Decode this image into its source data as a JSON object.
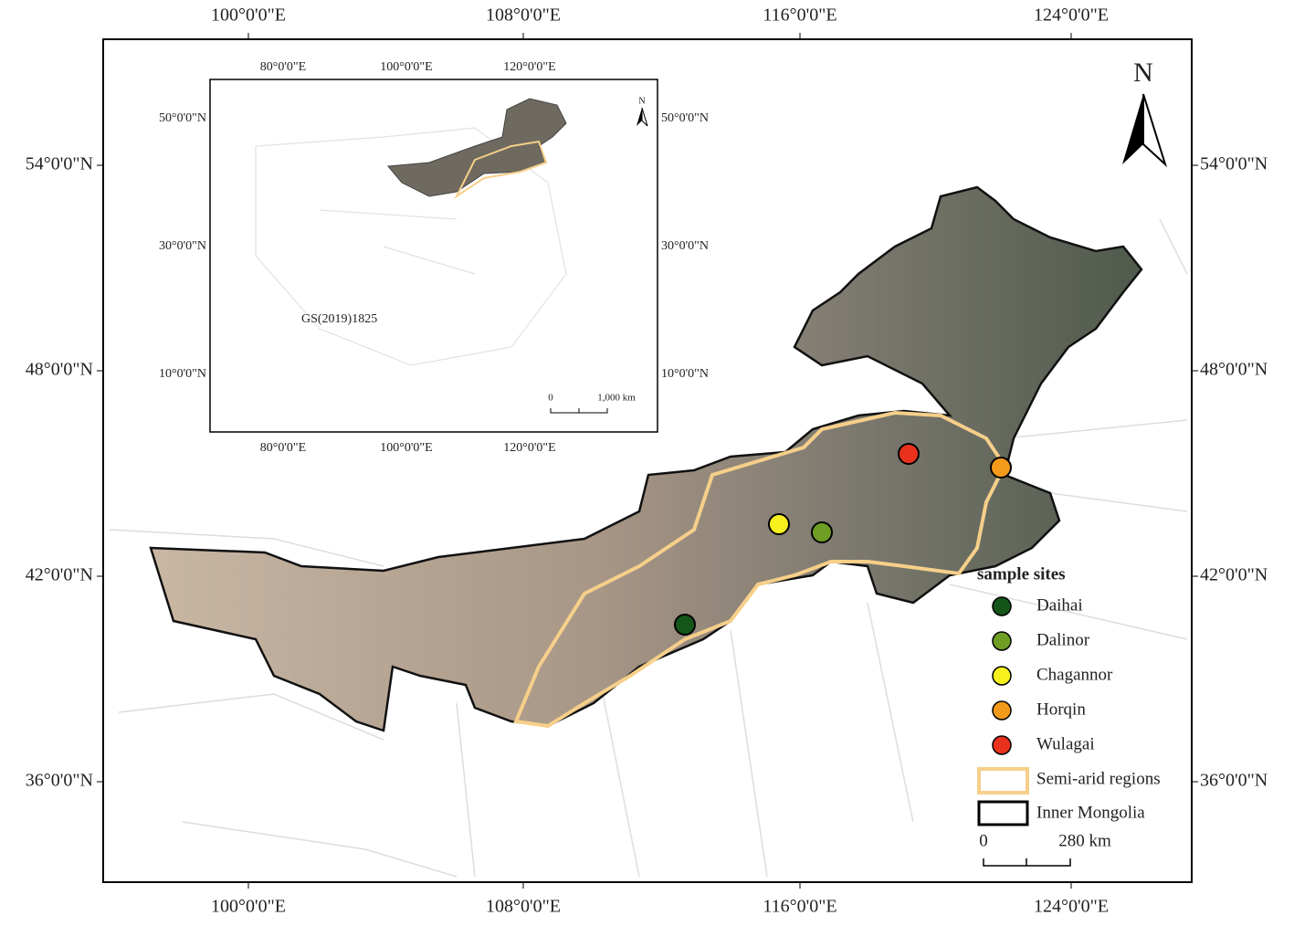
{
  "main_map": {
    "x_labels": [
      "100°0'0\"E",
      "108°0'0\"E",
      "116°0'0\"E",
      "124°0'0\"E"
    ],
    "y_labels": [
      "54°0'0\"N",
      "48°0'0\"N",
      "42°0'0\"N",
      "36°0'0\"N"
    ],
    "north": "N"
  },
  "inset_map": {
    "x_labels": [
      "80°0'0\"E",
      "100°0'0\"E",
      "120°0'0\"E"
    ],
    "y_labels": [
      "50°0'0\"N",
      "30°0'0\"N",
      "10°0'0\"N"
    ],
    "note": "GS(2019)1825",
    "north": "N",
    "scale_bar": {
      "start": "0",
      "end": "1,000 km"
    }
  },
  "legend": {
    "title": "sample sites",
    "sites": [
      {
        "name": "Daihai",
        "color": "#14561a"
      },
      {
        "name": "Dalinor",
        "color": "#6f9e24"
      },
      {
        "name": "Chagannor",
        "color": "#f5f01e"
      },
      {
        "name": "Horqin",
        "color": "#f39a1a"
      },
      {
        "name": "Wulagai",
        "color": "#e8321e"
      }
    ],
    "semi_arid": "Semi-arid regions",
    "inner_mongolia": "Inner Mongolia"
  },
  "scale_bar": {
    "start": "0",
    "end": "280 km"
  }
}
